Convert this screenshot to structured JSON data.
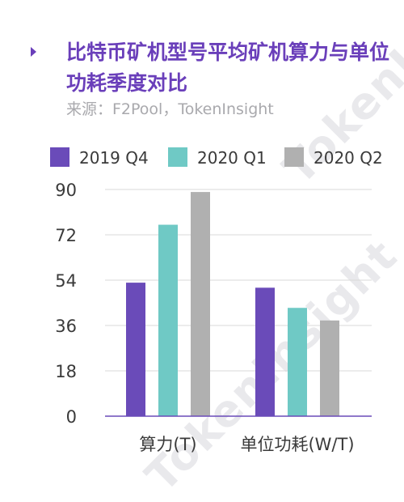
{
  "title": "比特币矿机型号平均矿机算力与单位功耗季度对比",
  "source": "来源：F2Pool，TokenInsight",
  "watermark": "TokenInsight",
  "chart_data": {
    "type": "bar",
    "categories": [
      "算力(T)",
      "单位功耗(W/T)"
    ],
    "series": [
      {
        "name": "2019 Q4",
        "color": "#6a4bb9",
        "values": [
          53,
          51
        ]
      },
      {
        "name": "2020 Q1",
        "color": "#6fc9c5",
        "values": [
          76,
          43
        ]
      },
      {
        "name": "2020 Q2",
        "color": "#b0b0b0",
        "values": [
          89,
          38
        ]
      }
    ],
    "ylim": [
      0,
      90
    ],
    "yticks": [
      "0",
      "18",
      "36",
      "54",
      "72",
      "90"
    ],
    "grid": true,
    "legend": "top"
  }
}
